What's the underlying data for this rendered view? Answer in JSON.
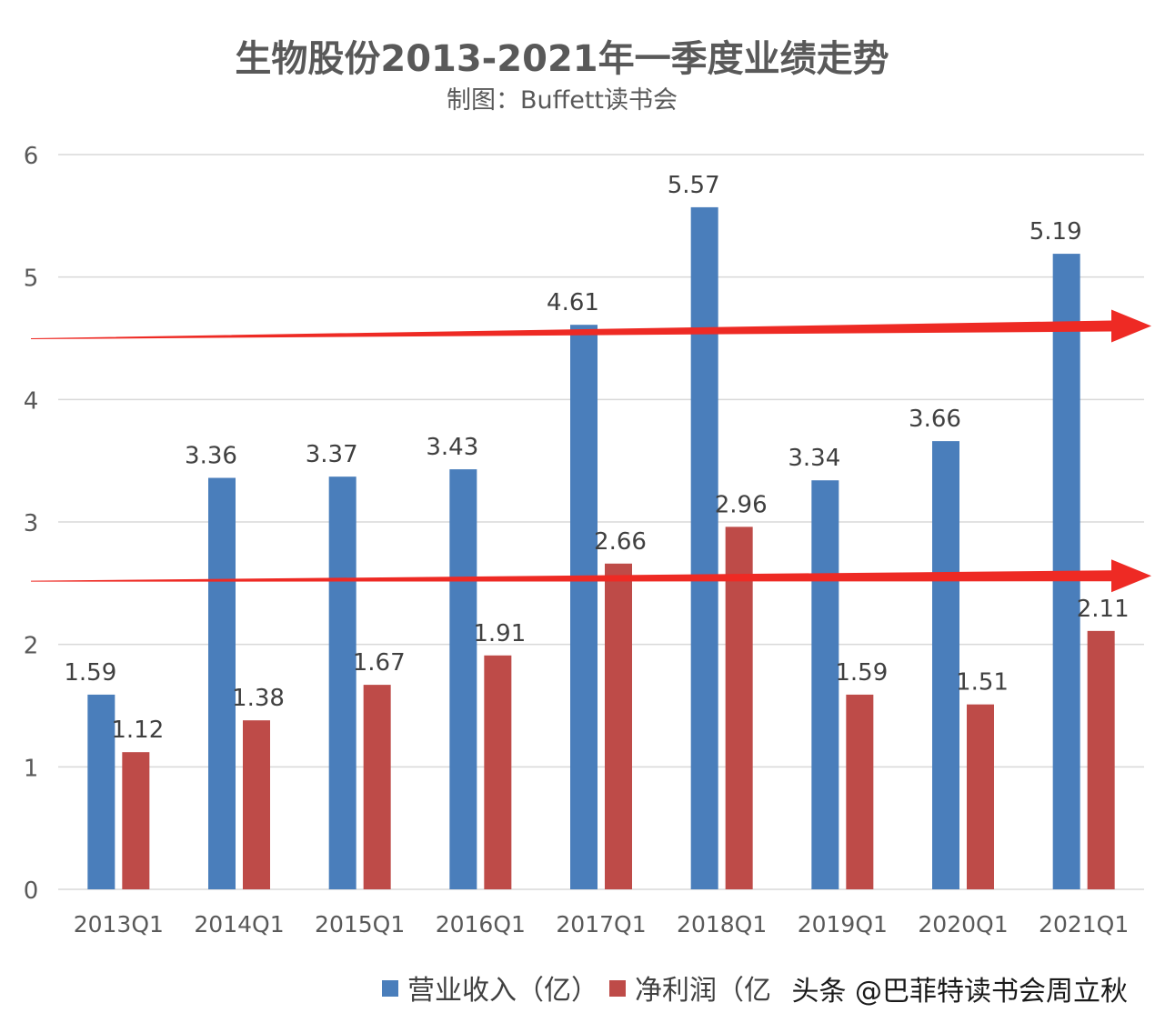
{
  "chart_data": {
    "type": "bar",
    "title": "生物股份2013-2021年一季度业绩走势",
    "subtitle": "制图：Buffett读书会",
    "categories": [
      "2013Q1",
      "2014Q1",
      "2015Q1",
      "2016Q1",
      "2017Q1",
      "2018Q1",
      "2019Q1",
      "2020Q1",
      "2021Q1"
    ],
    "series": [
      {
        "name": "营业收入（亿）",
        "color": "#4a7ebb",
        "values": [
          1.59,
          3.36,
          3.37,
          3.43,
          4.61,
          5.57,
          3.34,
          3.66,
          5.19
        ]
      },
      {
        "name": "净利润（亿",
        "color": "#be4b48",
        "values": [
          1.12,
          1.38,
          1.67,
          1.91,
          2.66,
          2.96,
          1.59,
          1.51,
          2.11
        ]
      }
    ],
    "ylim": [
      0,
      6
    ],
    "yticks": [
      0,
      1,
      2,
      3,
      4,
      5,
      6
    ],
    "grid": true,
    "legend_position": "bottom-right",
    "annotations": {
      "arrow_color": "#ee2a24",
      "arrows": [
        {
          "from_y": 4.5,
          "to_y": 4.6
        },
        {
          "from_y": 2.52,
          "to_y": 2.56
        }
      ]
    },
    "watermark": "头条 @巴菲特读书会周立秋"
  }
}
